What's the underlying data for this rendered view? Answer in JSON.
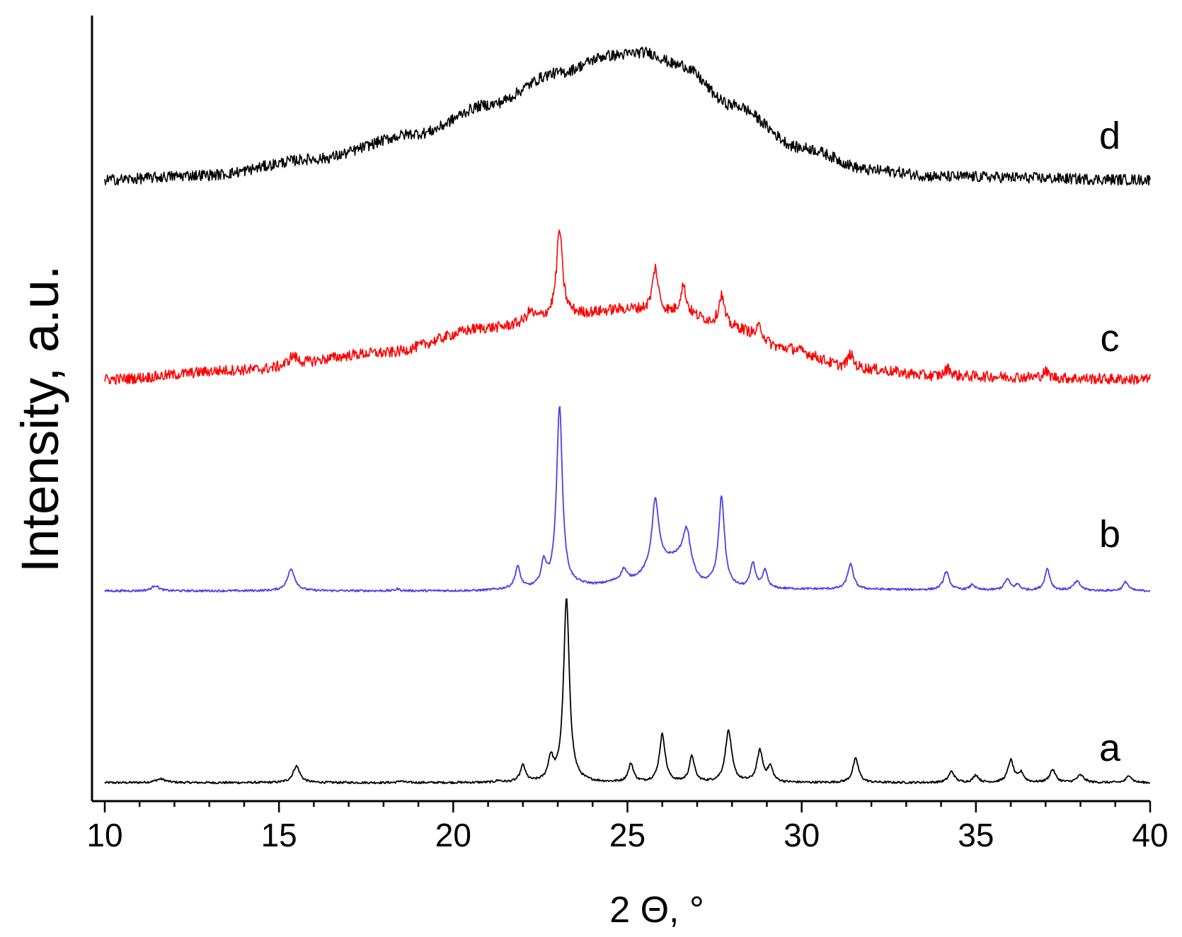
{
  "chart_data": {
    "type": "line",
    "xlabel": "2 Θ, °",
    "ylabel": "Intensity, a.u.",
    "xlim": [
      10,
      40
    ],
    "xticks": [
      10,
      15,
      20,
      25,
      30,
      35,
      40
    ],
    "grid": false,
    "legend": "none",
    "series": [
      {
        "name": "a",
        "color": "#000000",
        "noise": 0.006,
        "baseline": [
          [
            10,
            0.0
          ],
          [
            40,
            0.0
          ]
        ],
        "peaks": [
          [
            11.6,
            0.02,
            0.18
          ],
          [
            15.5,
            0.09,
            0.12
          ],
          [
            18.5,
            0.01,
            0.08
          ],
          [
            21.3,
            0.01,
            0.08
          ],
          [
            22.0,
            0.09,
            0.09
          ],
          [
            22.8,
            0.12,
            0.09
          ],
          [
            23.25,
            1.0,
            0.1
          ],
          [
            25.1,
            0.1,
            0.09
          ],
          [
            26.0,
            0.26,
            0.1
          ],
          [
            26.85,
            0.14,
            0.09
          ],
          [
            27.9,
            0.28,
            0.11
          ],
          [
            28.8,
            0.17,
            0.1
          ],
          [
            29.1,
            0.08,
            0.09
          ],
          [
            31.55,
            0.13,
            0.1
          ],
          [
            34.3,
            0.06,
            0.1
          ],
          [
            35.0,
            0.04,
            0.09
          ],
          [
            36.0,
            0.12,
            0.1
          ],
          [
            36.3,
            0.05,
            0.09
          ],
          [
            37.2,
            0.07,
            0.1
          ],
          [
            38.0,
            0.04,
            0.12
          ],
          [
            39.4,
            0.04,
            0.09
          ]
        ]
      },
      {
        "name": "b",
        "color": "#4a3fe8",
        "noise": 0.006,
        "baseline": [
          [
            10,
            0.0
          ],
          [
            20.5,
            0.0
          ],
          [
            22,
            0.01
          ],
          [
            24,
            0.03
          ],
          [
            25,
            0.06
          ],
          [
            26.5,
            0.18
          ],
          [
            27.2,
            0.04
          ],
          [
            28.5,
            0.01
          ],
          [
            40,
            0.0
          ]
        ],
        "peaks": [
          [
            11.45,
            0.03,
            0.12
          ],
          [
            15.35,
            0.12,
            0.13
          ],
          [
            18.4,
            0.01,
            0.08
          ],
          [
            21.85,
            0.12,
            0.09
          ],
          [
            22.6,
            0.13,
            0.09
          ],
          [
            23.05,
            1.0,
            0.1
          ],
          [
            24.9,
            0.06,
            0.09
          ],
          [
            25.8,
            0.38,
            0.12
          ],
          [
            26.7,
            0.19,
            0.12
          ],
          [
            27.7,
            0.49,
            0.1
          ],
          [
            28.6,
            0.14,
            0.09
          ],
          [
            28.95,
            0.1,
            0.08
          ],
          [
            31.4,
            0.14,
            0.1
          ],
          [
            34.15,
            0.1,
            0.1
          ],
          [
            34.9,
            0.03,
            0.08
          ],
          [
            35.9,
            0.06,
            0.1
          ],
          [
            36.2,
            0.03,
            0.08
          ],
          [
            37.05,
            0.12,
            0.09
          ],
          [
            37.9,
            0.05,
            0.12
          ],
          [
            39.3,
            0.05,
            0.09
          ]
        ]
      },
      {
        "name": "c",
        "color": "#ff0000",
        "noise": 0.035,
        "baseline": [
          [
            10,
            0.0
          ],
          [
            14,
            0.06
          ],
          [
            18,
            0.17
          ],
          [
            21,
            0.33
          ],
          [
            23.5,
            0.42
          ],
          [
            25,
            0.45
          ],
          [
            26.5,
            0.42
          ],
          [
            28,
            0.33
          ],
          [
            29.5,
            0.2
          ],
          [
            31.5,
            0.07
          ],
          [
            34,
            0.02
          ],
          [
            40,
            0.0
          ]
        ],
        "peaks": [
          [
            15.4,
            0.06,
            0.15
          ],
          [
            22.2,
            0.06,
            0.12
          ],
          [
            23.05,
            0.55,
            0.1
          ],
          [
            25.8,
            0.28,
            0.1
          ],
          [
            26.6,
            0.18,
            0.1
          ],
          [
            27.7,
            0.2,
            0.1
          ],
          [
            28.8,
            0.08,
            0.1
          ],
          [
            31.4,
            0.09,
            0.1
          ],
          [
            34.2,
            0.05,
            0.1
          ],
          [
            37.0,
            0.04,
            0.1
          ]
        ]
      },
      {
        "name": "d",
        "color": "#000000",
        "noise": 0.035,
        "baseline": [
          [
            10,
            0.0
          ],
          [
            13,
            0.03
          ],
          [
            16,
            0.13
          ],
          [
            19,
            0.29
          ],
          [
            21,
            0.47
          ],
          [
            23,
            0.67
          ],
          [
            24.5,
            0.78
          ],
          [
            25.5,
            0.8
          ],
          [
            26.5,
            0.72
          ],
          [
            28,
            0.47
          ],
          [
            30,
            0.2
          ],
          [
            32,
            0.06
          ],
          [
            34,
            0.02
          ],
          [
            40,
            0.0
          ]
        ],
        "peaks": []
      }
    ],
    "series_labels": [
      "a",
      "b",
      "c",
      "d"
    ]
  }
}
